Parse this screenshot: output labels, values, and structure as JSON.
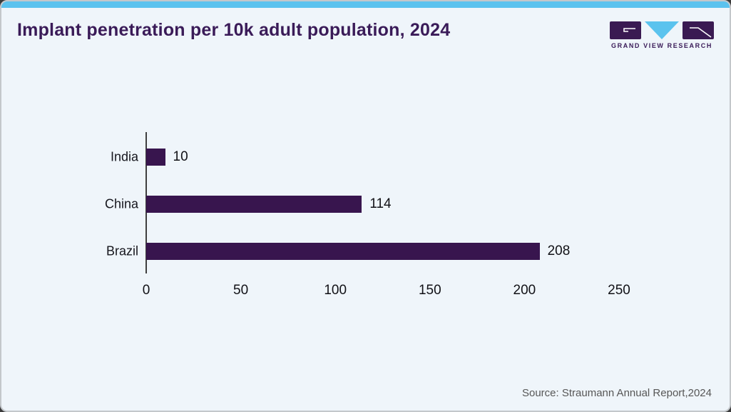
{
  "header": {
    "title": "Implant penetration per 10k adult population, 2024"
  },
  "logo": {
    "text": "GRAND VIEW RESEARCH",
    "tile_color": "#3a1a52",
    "triangle_color": "#5bc3ee"
  },
  "footer": {
    "source": "Source: Straumann Annual Report,2024"
  },
  "theme": {
    "accent_blue": "#5bc2ee",
    "background": "#eff5fa",
    "title_color": "#3a1b58",
    "bar_color": "#38154e",
    "text_color": "#111116",
    "source_color": "#575757"
  },
  "chart_data": {
    "type": "bar",
    "orientation": "horizontal",
    "title": "Implant penetration per 10k adult population, 2024",
    "categories": [
      "India",
      "China",
      "Brazil"
    ],
    "values": [
      10,
      114,
      208
    ],
    "value_labels": [
      "10",
      "114",
      "208"
    ],
    "xlabel": "",
    "ylabel": "",
    "xlim": [
      0,
      250
    ],
    "xticks": [
      0,
      50,
      100,
      150,
      200,
      250
    ],
    "grid": false,
    "legend": "none",
    "bar_color": "#38154e"
  }
}
